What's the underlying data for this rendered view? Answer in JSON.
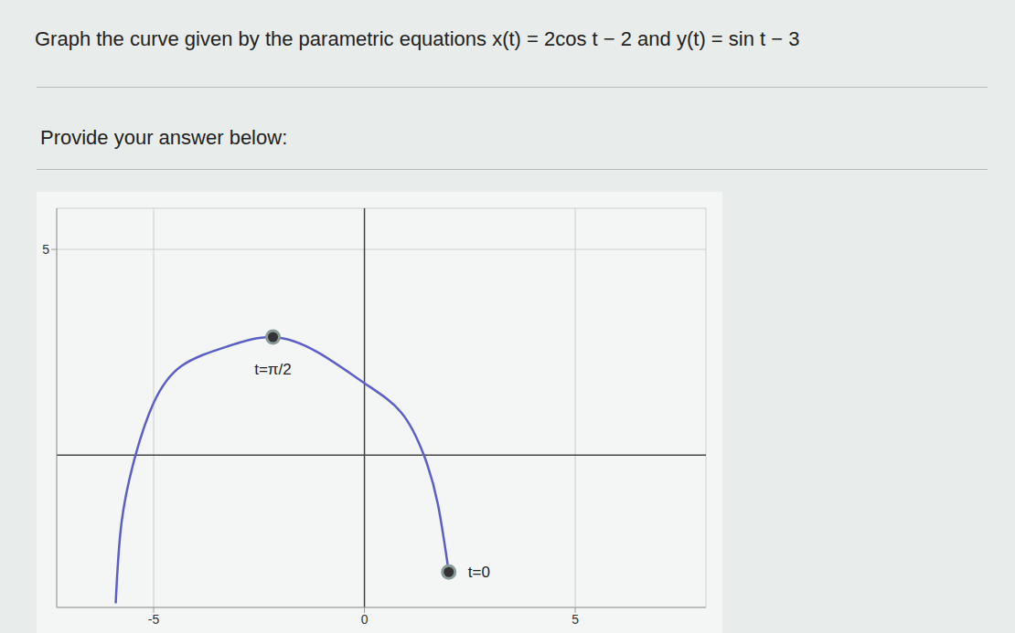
{
  "chart_data": {
    "type": "line",
    "title": "Graph the curve given by the parametric equations x(t) = 2cos t − 2 and y(t) = sin t − 3",
    "subtitle": "Provide your answer below:",
    "x": [
      -5.9,
      -5.76,
      -5.43,
      -5,
      -4.35,
      -3.26,
      -2.17,
      -1.09,
      0,
      0.87,
      1.41,
      1.74,
      2.0
    ],
    "values": [
      -3.6,
      -1.62,
      0,
      1.27,
      2.16,
      2.64,
      2.87,
      2.49,
      1.75,
      1.04,
      0,
      -1.18,
      -2.84
    ],
    "color": "#5b5fc7",
    "xlim": [
      -7.3,
      8.1
    ],
    "ylim": [
      -3.7,
      6
    ],
    "xticks": [
      -5,
      0,
      5
    ],
    "yticks": [
      5
    ],
    "grid": true,
    "points": [
      {
        "x": -2.17,
        "y": 2.87,
        "label": "t=π/2"
      },
      {
        "x": 2.0,
        "y": -2.84,
        "label": "t=0"
      }
    ]
  }
}
